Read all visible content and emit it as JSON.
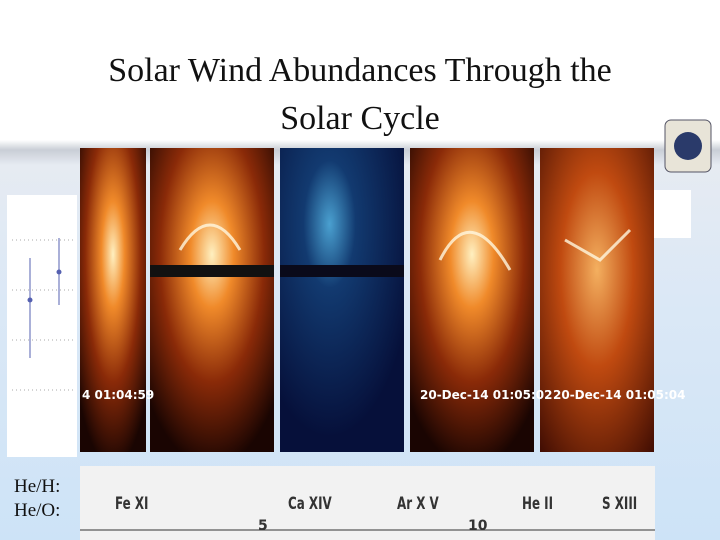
{
  "header": {
    "title_lines": [
      "Solar Wind Abundances Through the",
      "Solar Cycle"
    ]
  },
  "images": [
    {
      "timestamp": "4 01:04:59"
    },
    {
      "timestamp": "20-Dec-14 01:05:02"
    },
    {
      "timestamp": "20-Dec-14 01:05:04"
    }
  ],
  "side_labels": [
    "He/H:",
    "He/O:"
  ],
  "spectrum": {
    "lines": [
      "Fe XI",
      "Ca XIV",
      "Ar X V",
      "He II",
      "S XIII"
    ],
    "ticks": [
      "5",
      "10"
    ]
  }
}
